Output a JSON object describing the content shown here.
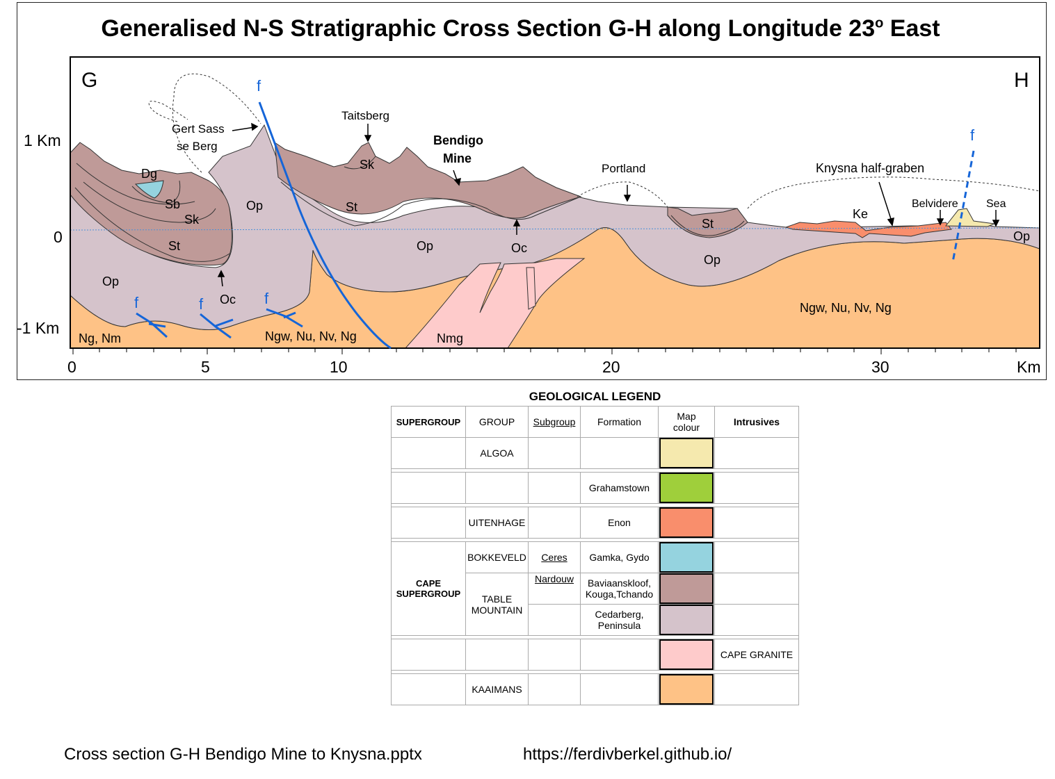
{
  "title": {
    "text": "Generalised N-S Stratigraphic Cross Section G-H along Longitude 23",
    "sup": "o",
    "tail": " East"
  },
  "section": {
    "end_left": "G",
    "end_right": "H",
    "y_labels": [
      "1 Km",
      "0",
      "-1 Km"
    ],
    "x_ticks": [
      "0",
      "5",
      "10",
      "20",
      "30",
      "Km"
    ],
    "places": {
      "gert": [
        "Gert Sass",
        "se Berg"
      ],
      "taitsberg": "Taitsberg",
      "bendigo": [
        "Bendigo",
        "Mine"
      ],
      "portland": "Portland",
      "knysna": "Knysna half-graben",
      "belvidere": "Belvidere",
      "sea": "Sea"
    },
    "units": {
      "dg": "Dg",
      "sb": "Sb",
      "sk1": "Sk",
      "st1": "St",
      "op1": "Op",
      "op2": "Op",
      "oc1": "Oc",
      "sk2": "Sk",
      "st2": "St",
      "op3": "Op",
      "oc2": "Oc",
      "st3": "St",
      "op4": "Op",
      "ke": "Ke",
      "op5": "Op",
      "ngnm": "Ng, Nm",
      "ngw1": "Ngw, Nu, Nv, Ng",
      "nmg": "Nmg",
      "ngw2": "Ngw, Nu, Nv, Ng"
    },
    "fault": "f",
    "colors": {
      "kaaimans": "#FEC286",
      "table_lower": "#D5C3CB",
      "table_upper": "#BF9A98",
      "bokkeveld": "#95D3DF",
      "granite": "#FECBCB",
      "enon": "#F98E6C",
      "algoa": "#F5E9AE",
      "fault": "#1565D8"
    }
  },
  "legend": {
    "title": "GEOLOGICAL LEGEND",
    "headers": {
      "supergroup": "SUPERGROUP",
      "group": "GROUP",
      "subgroup": "Subgroup",
      "formation": "Formation",
      "map_colour": [
        "Map",
        "colour"
      ],
      "intrusives": "Intrusives"
    },
    "rows": [
      {
        "group": "ALGOA",
        "formation": "",
        "color": "#F5E9AE",
        "intrusive": ""
      },
      {
        "group": "",
        "formation": "Grahamstown",
        "color": "#9FCF3B",
        "intrusive": ""
      },
      {
        "group": "UITENHAGE",
        "formation": "Enon",
        "color": "#F98E6C",
        "intrusive": ""
      },
      {
        "group": "BOKKEVELD",
        "subgroup": "Ceres",
        "formation": "Gamka, Gydo",
        "color": "#95D3DF"
      },
      {
        "subgroup": "Nardouw",
        "formation": [
          "Baviaanskloof,",
          "Kouga,Tchando"
        ],
        "color": "#BF9A98"
      },
      {
        "formation": [
          "Cedarberg,",
          "Peninsula"
        ],
        "color": "#D5C3CB"
      },
      {
        "color": "#FECBCB",
        "intrusive": "CAPE GRANITE"
      },
      {
        "group": "KAAIMANS",
        "color": "#FEC286"
      }
    ],
    "cape_supergroup": [
      "CAPE",
      "SUPERGROUP"
    ],
    "table_mountain": [
      "TABLE",
      "MOUNTAIN"
    ]
  },
  "footer": {
    "file": "Cross section G-H Bendigo Mine to Knysna.pptx",
    "url": "https://ferdivberkel.github.io/"
  }
}
